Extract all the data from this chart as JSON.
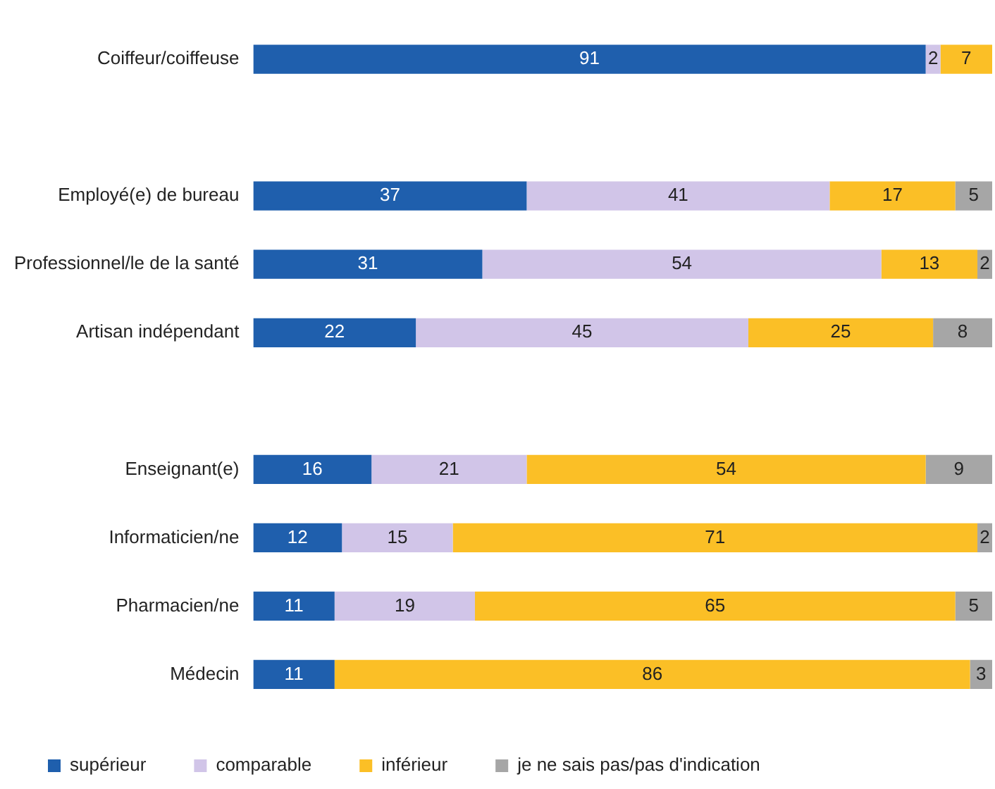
{
  "chart_data": {
    "type": "bar",
    "orientation": "horizontal",
    "stacked": true,
    "data_labels": true,
    "legend": "bottom",
    "tick_labels": "y",
    "categories": [
      "Coiffeur/coiffeuse",
      null,
      "Employé(e) de bureau",
      "Professionnel/le de la santé",
      "Artisan indépendant",
      null,
      "Enseignant(e)",
      "Informaticien/ne",
      "Pharmacien/ne",
      "Médecin"
    ],
    "series": [
      {
        "name": "supérieur",
        "color": "#1f5fad",
        "values": [
          91,
          null,
          37,
          31,
          22,
          null,
          16,
          12,
          11,
          11
        ]
      },
      {
        "name": "comparable",
        "color": "#d1c5e8",
        "values": [
          2,
          null,
          41,
          54,
          45,
          null,
          21,
          15,
          19,
          null
        ]
      },
      {
        "name": "inférieur",
        "color": "#fbbf26",
        "values": [
          7,
          null,
          17,
          13,
          25,
          null,
          54,
          71,
          65,
          86
        ]
      },
      {
        "name": "je ne sais pas/pas d'indication",
        "color": "#a6a6a6",
        "values": [
          null,
          null,
          5,
          2,
          8,
          null,
          9,
          2,
          5,
          3
        ]
      }
    ]
  }
}
